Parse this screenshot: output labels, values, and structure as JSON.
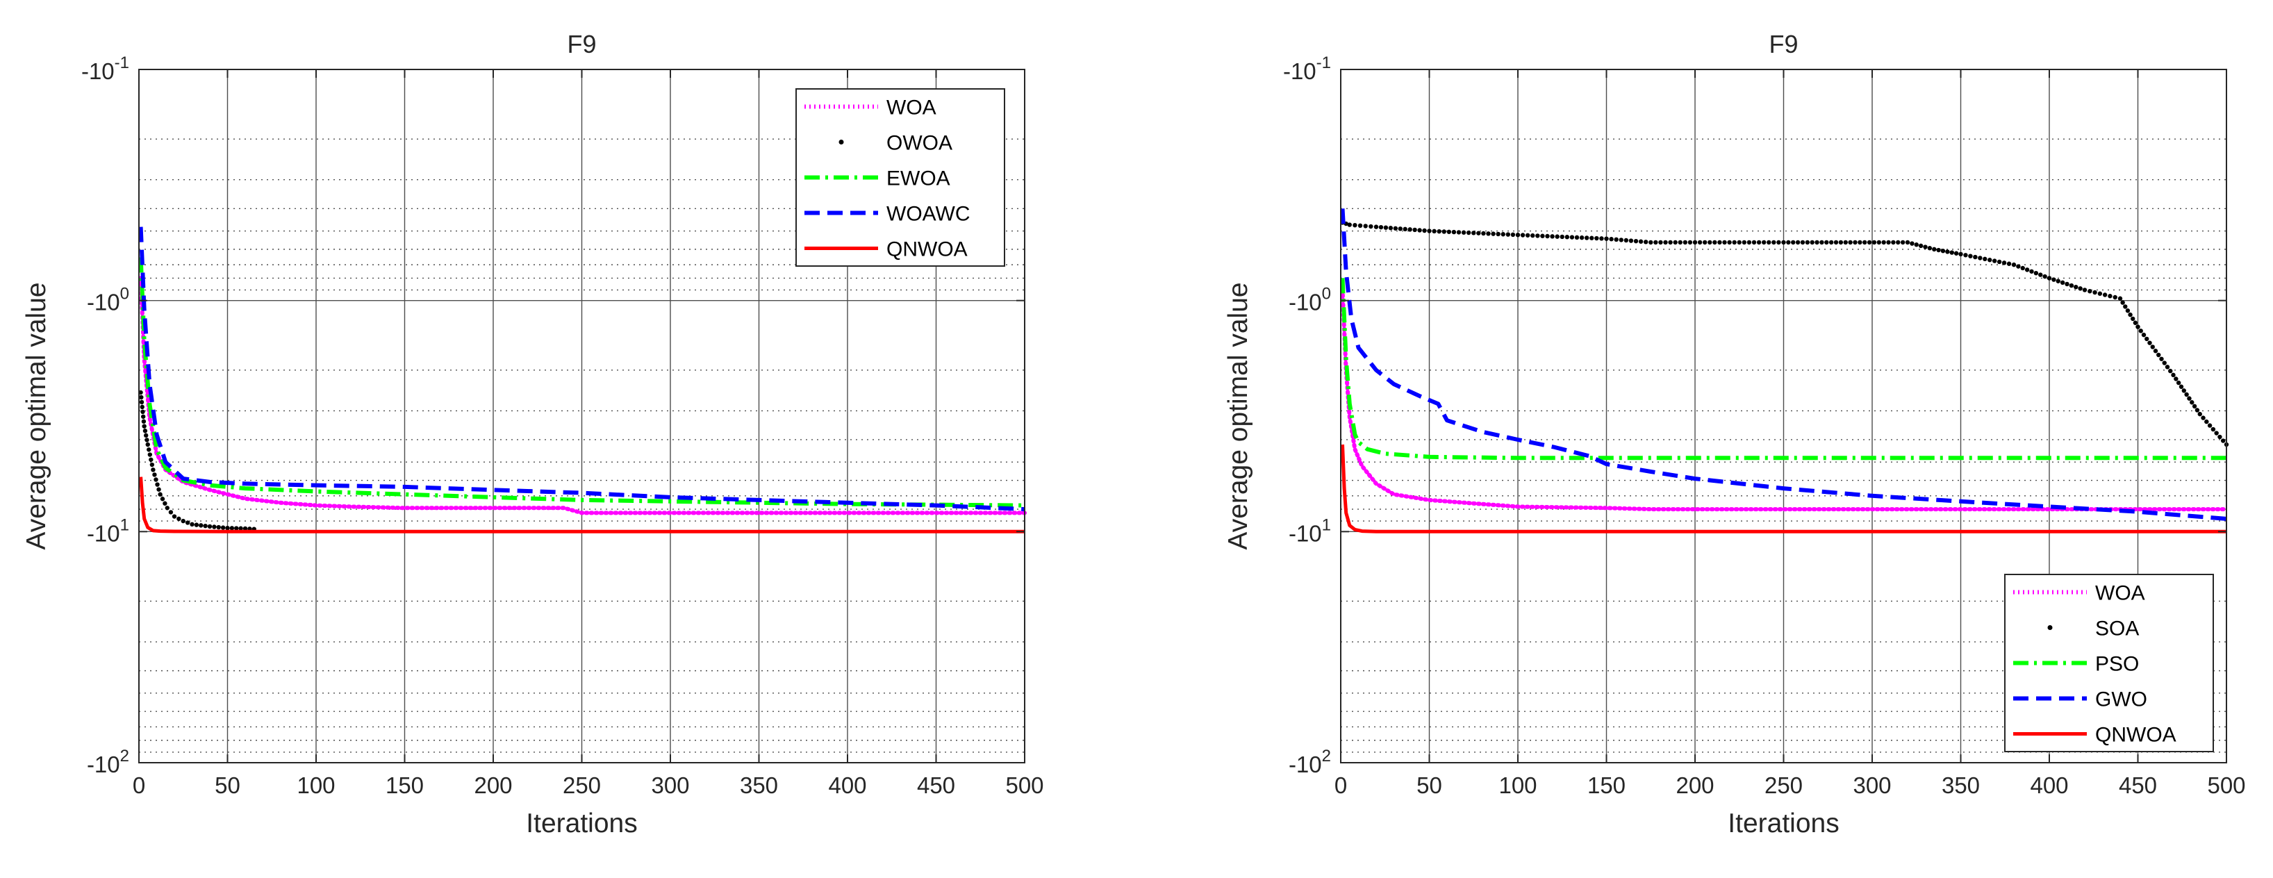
{
  "chart_data": [
    {
      "type": "line",
      "title": "F9",
      "xlabel": "Iterations",
      "ylabel": "Average optimal value",
      "xlim": [
        0,
        500
      ],
      "xticks": [
        "0",
        "50",
        "100",
        "150",
        "200",
        "250",
        "300",
        "350",
        "400",
        "450",
        "500"
      ],
      "yscale": "log-negative",
      "ylim_exponent": [
        -1,
        2
      ],
      "yticks": [
        {
          "base": "-10",
          "exp": "-1"
        },
        {
          "base": "-10",
          "exp": "0"
        },
        {
          "base": "-10",
          "exp": "1"
        },
        {
          "base": "-10",
          "exp": "2"
        }
      ],
      "grid": true,
      "legend_position": "top-right",
      "series": [
        {
          "name": "WOA",
          "color": "#ff00ff",
          "style": "dotted",
          "x": [
            1,
            3,
            6,
            10,
            15,
            25,
            40,
            60,
            80,
            100,
            120,
            150,
            200,
            240,
            250,
            300,
            400,
            500
          ],
          "y": [
            -0.8,
            -1.8,
            -3.2,
            -4.6,
            -5.4,
            -6.1,
            -6.6,
            -7.2,
            -7.5,
            -7.7,
            -7.8,
            -7.9,
            -7.9,
            -7.9,
            -8.3,
            -8.3,
            -8.3,
            -8.3
          ]
        },
        {
          "name": "OWOA",
          "color": "#000000",
          "style": "dots",
          "x": [
            1,
            3,
            5,
            8,
            12,
            16,
            20,
            25,
            30,
            40,
            50,
            60,
            65
          ],
          "y": [
            -2.5,
            -3.5,
            -4.2,
            -5.4,
            -6.9,
            -7.9,
            -8.6,
            -9.0,
            -9.3,
            -9.5,
            -9.65,
            -9.7,
            -9.75
          ]
        },
        {
          "name": "EWOA",
          "color": "#00ff00",
          "style": "dashdot",
          "x": [
            1,
            3,
            6,
            10,
            15,
            25,
            40,
            60,
            100,
            150,
            200,
            250,
            300,
            400,
            500
          ],
          "y": [
            -0.65,
            -1.5,
            -2.8,
            -4.4,
            -5.3,
            -6.0,
            -6.3,
            -6.5,
            -6.7,
            -6.9,
            -7.1,
            -7.3,
            -7.4,
            -7.6,
            -7.7
          ]
        },
        {
          "name": "WOAWC",
          "color": "#0000ff",
          "style": "dashed",
          "x": [
            1,
            3,
            6,
            10,
            15,
            25,
            40,
            60,
            100,
            150,
            200,
            250,
            300,
            350,
            400,
            450,
            500
          ],
          "y": [
            -0.48,
            -1.1,
            -2.3,
            -3.8,
            -5.0,
            -5.9,
            -6.1,
            -6.2,
            -6.3,
            -6.4,
            -6.6,
            -6.8,
            -7.1,
            -7.3,
            -7.5,
            -7.7,
            -8.0
          ]
        },
        {
          "name": "QNWOA",
          "color": "#ff0000",
          "style": "solid",
          "x": [
            1,
            2,
            3,
            5,
            8,
            12,
            20,
            50,
            100,
            500
          ],
          "y": [
            -5.8,
            -7.5,
            -8.8,
            -9.6,
            -9.9,
            -9.95,
            -9.98,
            -10.0,
            -10.0,
            -10.0
          ]
        }
      ]
    },
    {
      "type": "line",
      "title": "F9",
      "xlabel": "Iterations",
      "ylabel": "Average optimal value",
      "xlim": [
        0,
        500
      ],
      "xticks": [
        "0",
        "50",
        "100",
        "150",
        "200",
        "250",
        "300",
        "350",
        "400",
        "450",
        "500"
      ],
      "yscale": "log-negative",
      "ylim_exponent": [
        -1,
        2
      ],
      "yticks": [
        {
          "base": "-10",
          "exp": "-1"
        },
        {
          "base": "-10",
          "exp": "0"
        },
        {
          "base": "-10",
          "exp": "1"
        },
        {
          "base": "-10",
          "exp": "2"
        }
      ],
      "grid": true,
      "legend_position": "bottom-right",
      "series": [
        {
          "name": "WOA",
          "color": "#ff00ff",
          "style": "dotted",
          "x": [
            1,
            3,
            5,
            8,
            12,
            20,
            30,
            50,
            80,
            100,
            150,
            175,
            250,
            350,
            500
          ],
          "y": [
            -0.9,
            -2.0,
            -3.2,
            -4.4,
            -5.2,
            -6.2,
            -6.9,
            -7.3,
            -7.6,
            -7.8,
            -7.9,
            -8.0,
            -8.0,
            -8.0,
            -8.0
          ]
        },
        {
          "name": "SOA",
          "color": "#000000",
          "style": "dots",
          "x": [
            1,
            5,
            20,
            50,
            100,
            150,
            175,
            250,
            320,
            335,
            350,
            380,
            400,
            420,
            440,
            450,
            470,
            485,
            500
          ],
          "y": [
            -0.46,
            -0.47,
            -0.48,
            -0.5,
            -0.52,
            -0.54,
            -0.56,
            -0.56,
            -0.56,
            -0.6,
            -0.63,
            -0.7,
            -0.8,
            -0.9,
            -0.98,
            -1.3,
            -2.1,
            -3.1,
            -4.2
          ]
        },
        {
          "name": "PSO",
          "color": "#00ff00",
          "style": "dashdot",
          "x": [
            1,
            3,
            5,
            8,
            10,
            15,
            25,
            50,
            100,
            200,
            500
          ],
          "y": [
            -0.8,
            -1.8,
            -2.8,
            -3.8,
            -4.1,
            -4.4,
            -4.6,
            -4.75,
            -4.8,
            -4.8,
            -4.8
          ]
        },
        {
          "name": "GWO",
          "color": "#0000ff",
          "style": "dashed",
          "x": [
            1,
            3,
            6,
            10,
            20,
            30,
            45,
            55,
            60,
            80,
            100,
            120,
            140,
            150,
            175,
            200,
            250,
            300,
            350,
            400,
            450,
            500
          ],
          "y": [
            -0.4,
            -0.75,
            -1.2,
            -1.6,
            -2.0,
            -2.3,
            -2.6,
            -2.8,
            -3.3,
            -3.7,
            -4.0,
            -4.3,
            -4.7,
            -5.1,
            -5.5,
            -5.9,
            -6.5,
            -7.0,
            -7.4,
            -7.8,
            -8.2,
            -8.8
          ]
        },
        {
          "name": "QNWOA",
          "color": "#ff0000",
          "style": "solid",
          "x": [
            1,
            2,
            3,
            5,
            8,
            12,
            20,
            50,
            500
          ],
          "y": [
            -4.2,
            -6.5,
            -8.3,
            -9.4,
            -9.8,
            -9.95,
            -10.0,
            -10.0,
            -10.0
          ]
        }
      ]
    }
  ]
}
